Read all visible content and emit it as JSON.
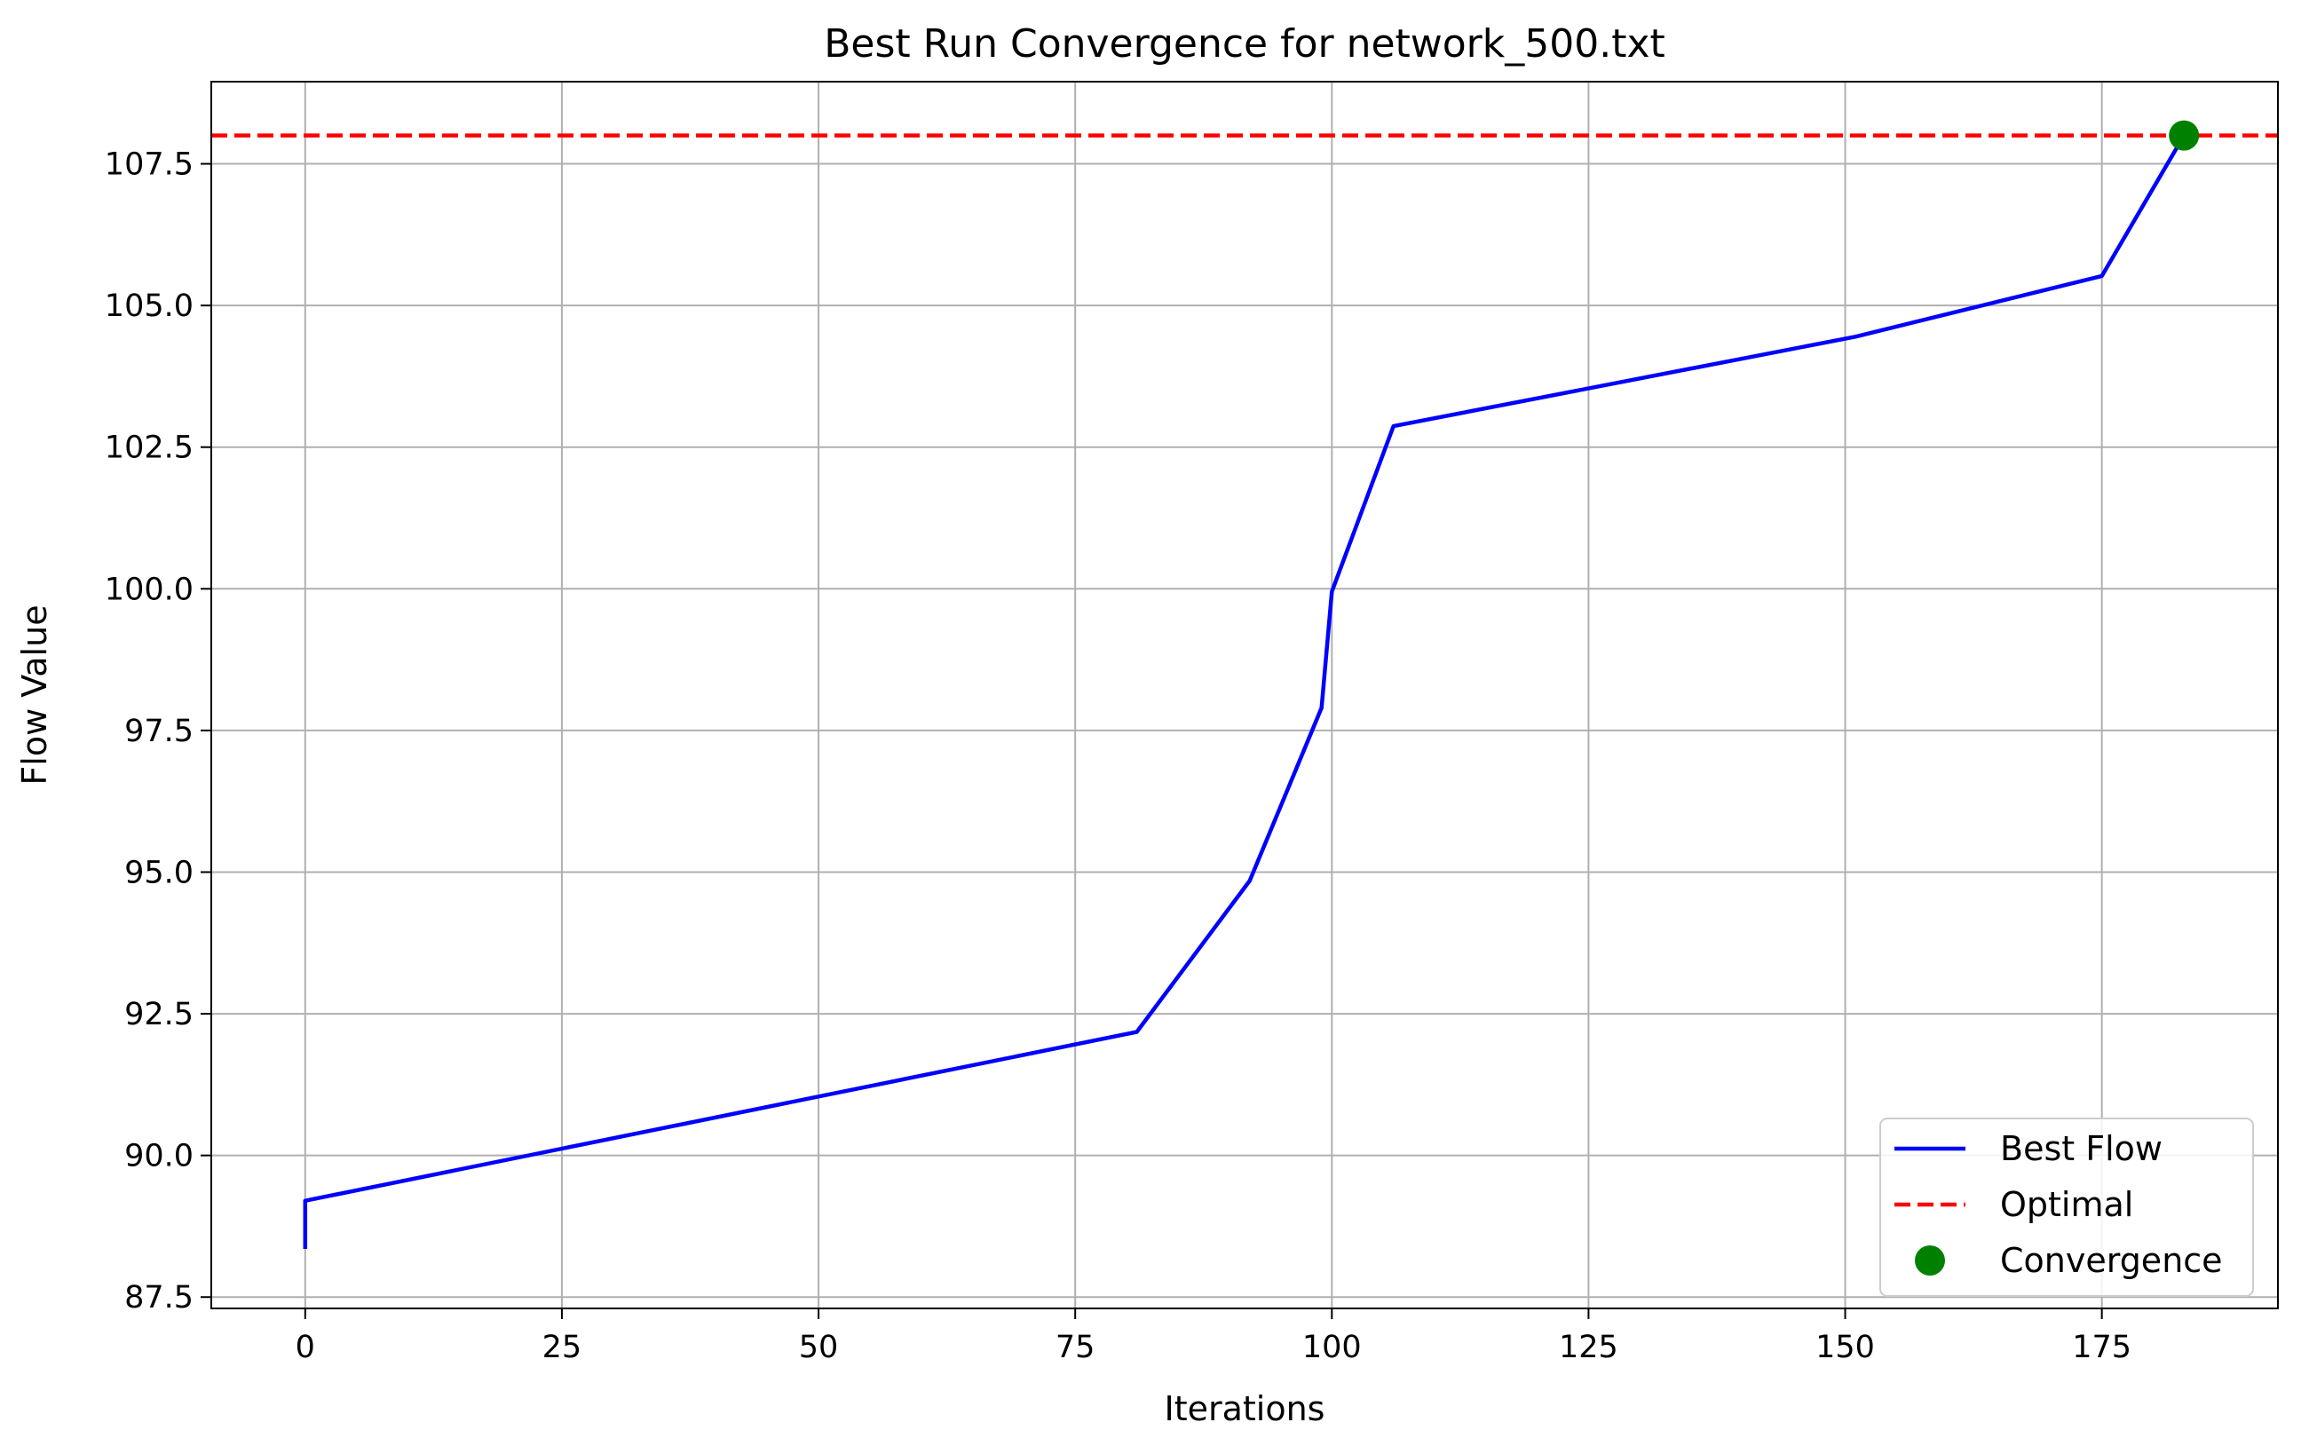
{
  "chart_data": {
    "type": "line",
    "title": "Best Run Convergence for network_500.txt",
    "xlabel": "Iterations",
    "ylabel": "Flow Value",
    "xlim": [
      -9.15,
      192.15
    ],
    "ylim": [
      87.3,
      108.95
    ],
    "xticks": [
      0,
      25,
      50,
      75,
      100,
      125,
      150,
      175
    ],
    "yticks": [
      87.5,
      90.0,
      92.5,
      95.0,
      97.5,
      100.0,
      102.5,
      105.0,
      107.5
    ],
    "x_tick_labels": [
      "0",
      "25",
      "50",
      "75",
      "100",
      "125",
      "150",
      "175"
    ],
    "y_tick_labels": [
      "87.5",
      "90.0",
      "92.5",
      "95.0",
      "97.5",
      "100.0",
      "102.5",
      "105.0",
      "107.5"
    ],
    "grid": true,
    "legend_position": "lower-right",
    "series": [
      {
        "name": "Best Flow",
        "style": "solid",
        "color": "#0000ff",
        "x": [
          0,
          0,
          81,
          92,
          99,
          100,
          106,
          151,
          175,
          183
        ],
        "y": [
          88.35,
          89.2,
          92.18,
          94.85,
          97.9,
          99.95,
          102.87,
          104.45,
          105.52,
          108.0
        ]
      },
      {
        "name": "Optimal",
        "style": "dashed",
        "color": "#ff0000",
        "y_constant": 108.0
      },
      {
        "name": "Convergence",
        "style": "marker",
        "color": "#008000",
        "x": [
          183
        ],
        "y": [
          108.0
        ]
      }
    ]
  }
}
